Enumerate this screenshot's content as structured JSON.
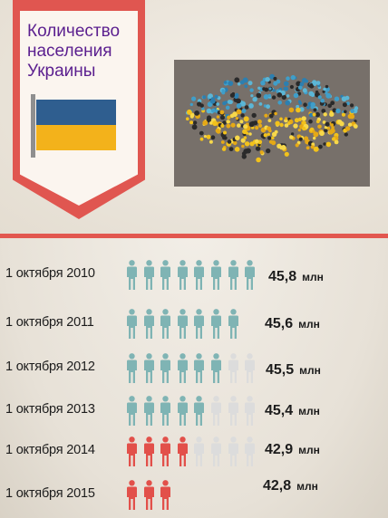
{
  "header": {
    "title_lines": [
      "Количество",
      "населения",
      "Украины"
    ]
  },
  "colors": {
    "banner": "#e05650",
    "divider": "#e2574f",
    "title_text": "#5b1f8f",
    "flag_blue": "#2f5e8f",
    "flag_yellow": "#f3b21b",
    "figure_teal": "#7fb4b4",
    "figure_red": "#e2504a",
    "figure_empty": "#dcdcdc"
  },
  "icons": {
    "figure": "person-icon",
    "flag": "ukraine-flag-icon",
    "photo": "crowd-forming-ukraine-map-photo"
  },
  "chart_data": {
    "type": "pictogram",
    "title": "Количество населения Украины",
    "categories": [
      "1 октября 2010",
      "1 октября 2011",
      "1 октября 2012",
      "1 октября 2013",
      "1 октября 2014",
      "1 октября 2015"
    ],
    "values": [
      45.8,
      45.6,
      45.5,
      45.4,
      42.9,
      42.8
    ],
    "value_labels": [
      "45,8",
      "45,6",
      "45,5",
      "45,4",
      "42,9",
      "42,8"
    ],
    "unit": "млн",
    "filled_figures": [
      8,
      7,
      6,
      5,
      4,
      3
    ],
    "empty_figures": [
      0,
      0,
      2,
      3,
      4,
      0
    ],
    "figure_color": [
      "teal",
      "teal",
      "teal",
      "teal",
      "red",
      "red"
    ]
  }
}
